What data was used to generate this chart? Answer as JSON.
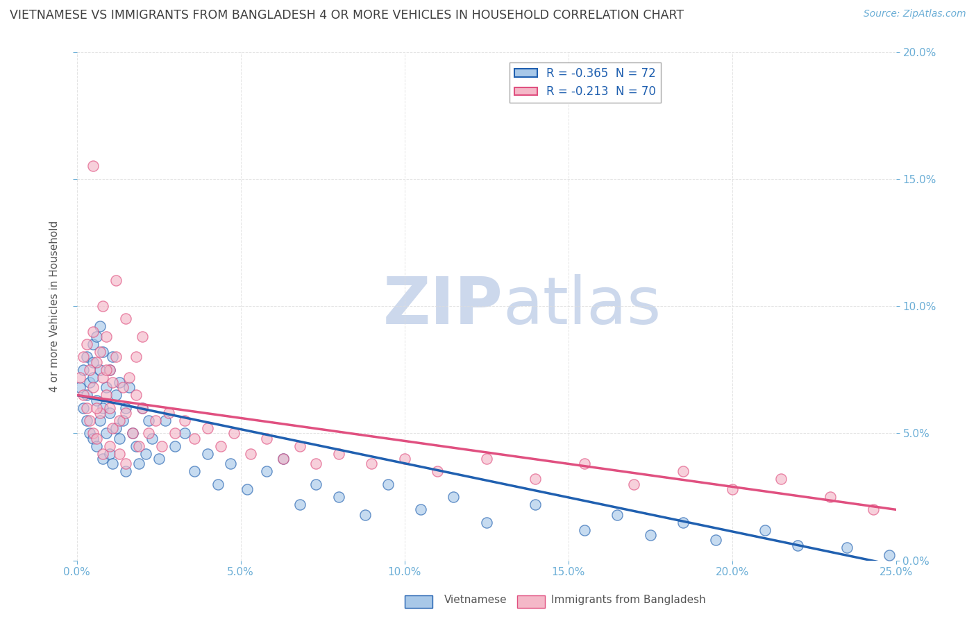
{
  "title": "VIETNAMESE VS IMMIGRANTS FROM BANGLADESH 4 OR MORE VEHICLES IN HOUSEHOLD CORRELATION CHART",
  "source": "Source: ZipAtlas.com",
  "ylabel": "4 or more Vehicles in Household",
  "xlim": [
    0.0,
    0.25
  ],
  "ylim": [
    0.0,
    0.2
  ],
  "xticks": [
    0.0,
    0.05,
    0.1,
    0.15,
    0.2,
    0.25
  ],
  "yticks": [
    0.0,
    0.05,
    0.1,
    0.15,
    0.2
  ],
  "legend_label1": "R = -0.365  N = 72",
  "legend_label2": "R = -0.213  N = 70",
  "color_blue": "#a8c8e8",
  "color_pink": "#f4b8c8",
  "color_blue_line": "#2060b0",
  "color_pink_line": "#e05080",
  "color_title": "#404040",
  "color_source": "#6baed6",
  "color_axis": "#6baed6",
  "color_grid": "#dddddd",
  "color_watermark": "#ccd8ec",
  "seed": 99,
  "scatter1_x": [
    0.001,
    0.002,
    0.002,
    0.003,
    0.003,
    0.003,
    0.004,
    0.004,
    0.005,
    0.005,
    0.005,
    0.005,
    0.006,
    0.006,
    0.006,
    0.007,
    0.007,
    0.007,
    0.008,
    0.008,
    0.008,
    0.009,
    0.009,
    0.01,
    0.01,
    0.01,
    0.011,
    0.011,
    0.012,
    0.012,
    0.013,
    0.013,
    0.014,
    0.015,
    0.015,
    0.016,
    0.017,
    0.018,
    0.019,
    0.02,
    0.021,
    0.022,
    0.023,
    0.025,
    0.027,
    0.03,
    0.033,
    0.036,
    0.04,
    0.043,
    0.047,
    0.052,
    0.058,
    0.063,
    0.068,
    0.073,
    0.08,
    0.088,
    0.095,
    0.105,
    0.115,
    0.125,
    0.14,
    0.155,
    0.165,
    0.175,
    0.185,
    0.195,
    0.21,
    0.22,
    0.235,
    0.248
  ],
  "scatter1_y": [
    0.068,
    0.06,
    0.075,
    0.065,
    0.08,
    0.055,
    0.07,
    0.05,
    0.085,
    0.072,
    0.048,
    0.078,
    0.063,
    0.088,
    0.045,
    0.075,
    0.055,
    0.092,
    0.06,
    0.082,
    0.04,
    0.068,
    0.05,
    0.075,
    0.042,
    0.058,
    0.08,
    0.038,
    0.065,
    0.052,
    0.048,
    0.07,
    0.055,
    0.06,
    0.035,
    0.068,
    0.05,
    0.045,
    0.038,
    0.06,
    0.042,
    0.055,
    0.048,
    0.04,
    0.055,
    0.045,
    0.05,
    0.035,
    0.042,
    0.03,
    0.038,
    0.028,
    0.035,
    0.04,
    0.022,
    0.03,
    0.025,
    0.018,
    0.03,
    0.02,
    0.025,
    0.015,
    0.022,
    0.012,
    0.018,
    0.01,
    0.015,
    0.008,
    0.012,
    0.006,
    0.005,
    0.002
  ],
  "scatter2_x": [
    0.001,
    0.002,
    0.002,
    0.003,
    0.003,
    0.004,
    0.004,
    0.005,
    0.005,
    0.005,
    0.006,
    0.006,
    0.007,
    0.007,
    0.008,
    0.008,
    0.009,
    0.009,
    0.01,
    0.01,
    0.01,
    0.011,
    0.011,
    0.012,
    0.013,
    0.013,
    0.014,
    0.015,
    0.015,
    0.016,
    0.017,
    0.018,
    0.019,
    0.02,
    0.022,
    0.024,
    0.026,
    0.028,
    0.03,
    0.033,
    0.036,
    0.04,
    0.044,
    0.048,
    0.053,
    0.058,
    0.063,
    0.068,
    0.073,
    0.08,
    0.09,
    0.1,
    0.11,
    0.125,
    0.14,
    0.155,
    0.17,
    0.185,
    0.2,
    0.215,
    0.23,
    0.243,
    0.005,
    0.008,
    0.012,
    0.015,
    0.018,
    0.02,
    0.006,
    0.009
  ],
  "scatter2_y": [
    0.072,
    0.065,
    0.08,
    0.06,
    0.085,
    0.055,
    0.075,
    0.09,
    0.05,
    0.068,
    0.078,
    0.048,
    0.082,
    0.058,
    0.072,
    0.042,
    0.065,
    0.088,
    0.06,
    0.075,
    0.045,
    0.07,
    0.052,
    0.08,
    0.055,
    0.042,
    0.068,
    0.058,
    0.038,
    0.072,
    0.05,
    0.065,
    0.045,
    0.06,
    0.05,
    0.055,
    0.045,
    0.058,
    0.05,
    0.055,
    0.048,
    0.052,
    0.045,
    0.05,
    0.042,
    0.048,
    0.04,
    0.045,
    0.038,
    0.042,
    0.038,
    0.04,
    0.035,
    0.04,
    0.032,
    0.038,
    0.03,
    0.035,
    0.028,
    0.032,
    0.025,
    0.02,
    0.155,
    0.1,
    0.11,
    0.095,
    0.08,
    0.088,
    0.06,
    0.075
  ]
}
